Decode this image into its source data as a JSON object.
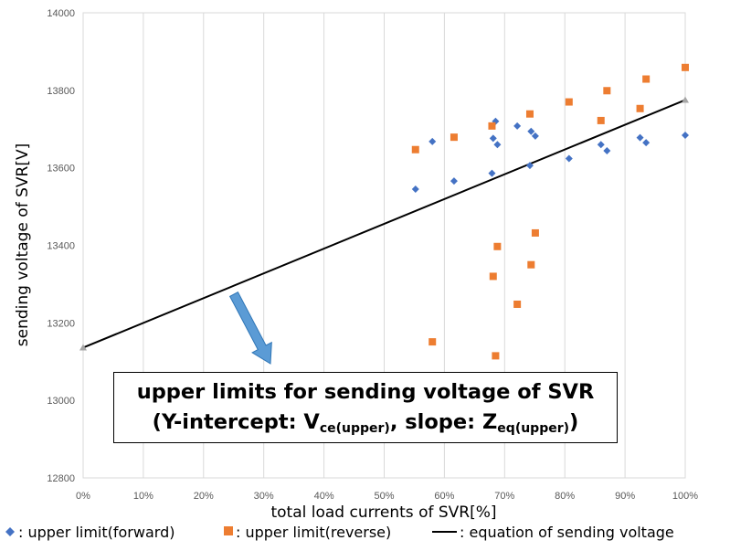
{
  "chart_data": {
    "type": "scatter",
    "xlabel": "total load currents of SVR[%]",
    "ylabel": "sending voltage of SVR[V]",
    "xlim": [
      0,
      100
    ],
    "ylim": [
      12800,
      14000
    ],
    "x_tick_labels": [
      "0%",
      "10%",
      "20%",
      "30%",
      "40%",
      "50%",
      "60%",
      "70%",
      "80%",
      "90%",
      "100%"
    ],
    "y_tick_labels": [
      "12800",
      "13000",
      "13200",
      "13400",
      "13600",
      "13800",
      "14000"
    ],
    "grid": "vertical",
    "legend_position": "bottom",
    "series": [
      {
        "name": ": upper limit(forward)",
        "marker": "diamond",
        "color": "#4472C4",
        "points": [
          [
            55.2,
            13545
          ],
          [
            58.0,
            13668
          ],
          [
            61.6,
            13566
          ],
          [
            67.9,
            13586
          ],
          [
            68.1,
            13676
          ],
          [
            68.5,
            13720
          ],
          [
            68.8,
            13660
          ],
          [
            72.1,
            13708
          ],
          [
            74.2,
            13606
          ],
          [
            74.4,
            13694
          ],
          [
            75.1,
            13682
          ],
          [
            80.7,
            13624
          ],
          [
            86.0,
            13660
          ],
          [
            87.0,
            13644
          ],
          [
            92.5,
            13678
          ],
          [
            93.5,
            13665
          ],
          [
            100.0,
            13684
          ]
        ]
      },
      {
        "name": ": upper limit(reverse)",
        "marker": "square",
        "color": "#ED7D31",
        "points": [
          [
            55.2,
            13647
          ],
          [
            58.0,
            13151
          ],
          [
            61.6,
            13679
          ],
          [
            67.9,
            13708
          ],
          [
            68.1,
            13320
          ],
          [
            68.5,
            13115
          ],
          [
            68.8,
            13397
          ],
          [
            72.1,
            13248
          ],
          [
            74.2,
            13739
          ],
          [
            74.4,
            13350
          ],
          [
            75.1,
            13432
          ],
          [
            80.7,
            13770
          ],
          [
            86.0,
            13722
          ],
          [
            87.0,
            13799
          ],
          [
            92.5,
            13753
          ],
          [
            93.5,
            13829
          ],
          [
            100.0,
            13859
          ]
        ]
      },
      {
        "name": ": equation of sending voltage",
        "marker": "line",
        "color": "#000000",
        "points": [
          [
            0,
            13136
          ],
          [
            100,
            13775
          ]
        ]
      }
    ],
    "annotation": {
      "line1": "upper limits for sending voltage of SVR",
      "line2_pre": "(Y-intercept: V",
      "line2_sub1": "ce(upper)",
      "line2_mid": ", slope: Z",
      "line2_sub2": "eq(upper)",
      "line2_post": ")",
      "arrow_color": "#5B9BD5"
    }
  }
}
